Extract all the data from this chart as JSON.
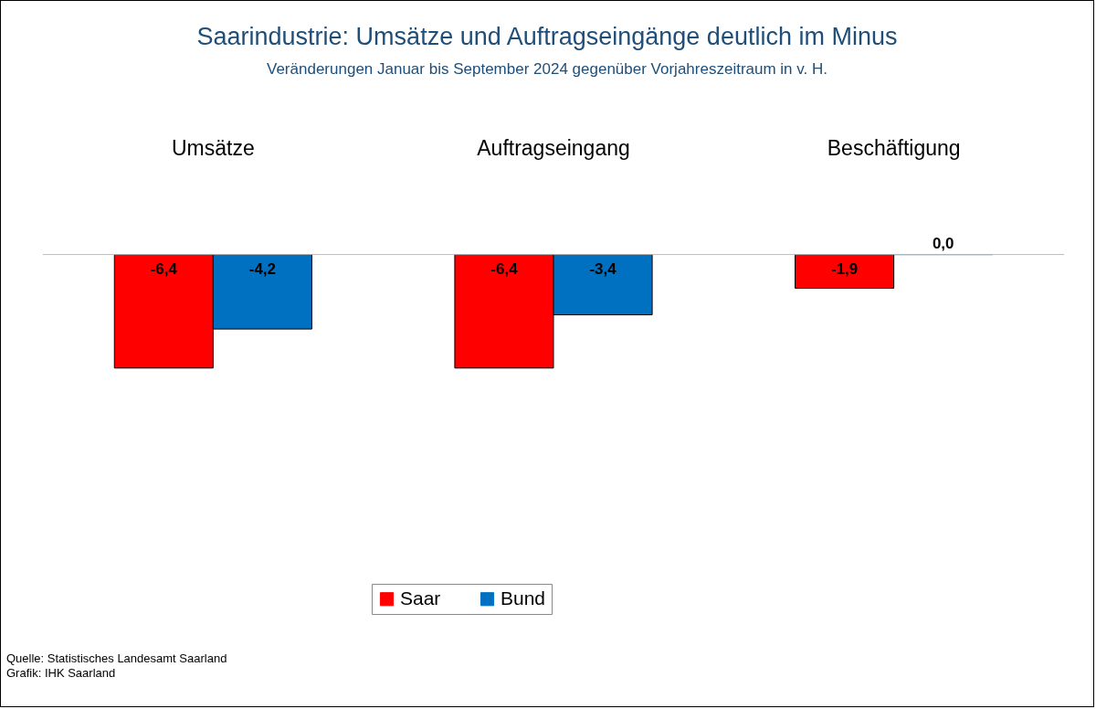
{
  "chart_data": {
    "type": "bar",
    "title": "Saarindustrie: Umsätze und Auftragseingänge deutlich im Minus",
    "subtitle": "Veränderungen Januar bis September 2024 gegenüber Vorjahreszeitraum in v. H.",
    "categories": [
      "Umsätze",
      "Auftragseingang",
      "Beschäftigung"
    ],
    "series": [
      {
        "name": "Saar",
        "color": "#ff0000",
        "values": [
          -6.4,
          -6.4,
          -1.9
        ],
        "value_labels": [
          "-6,4",
          "-6,4",
          "-1,9"
        ]
      },
      {
        "name": "Bund",
        "color": "#0070c0",
        "values": [
          -4.2,
          -3.4,
          0
        ],
        "value_labels": [
          "-4,2",
          "-3,4",
          "0,0"
        ]
      }
    ],
    "legend": "bottom",
    "annotations": [
      "Quelle: Statistisches Landesamt Saarland",
      "Grafik: IHK Saarland"
    ]
  }
}
